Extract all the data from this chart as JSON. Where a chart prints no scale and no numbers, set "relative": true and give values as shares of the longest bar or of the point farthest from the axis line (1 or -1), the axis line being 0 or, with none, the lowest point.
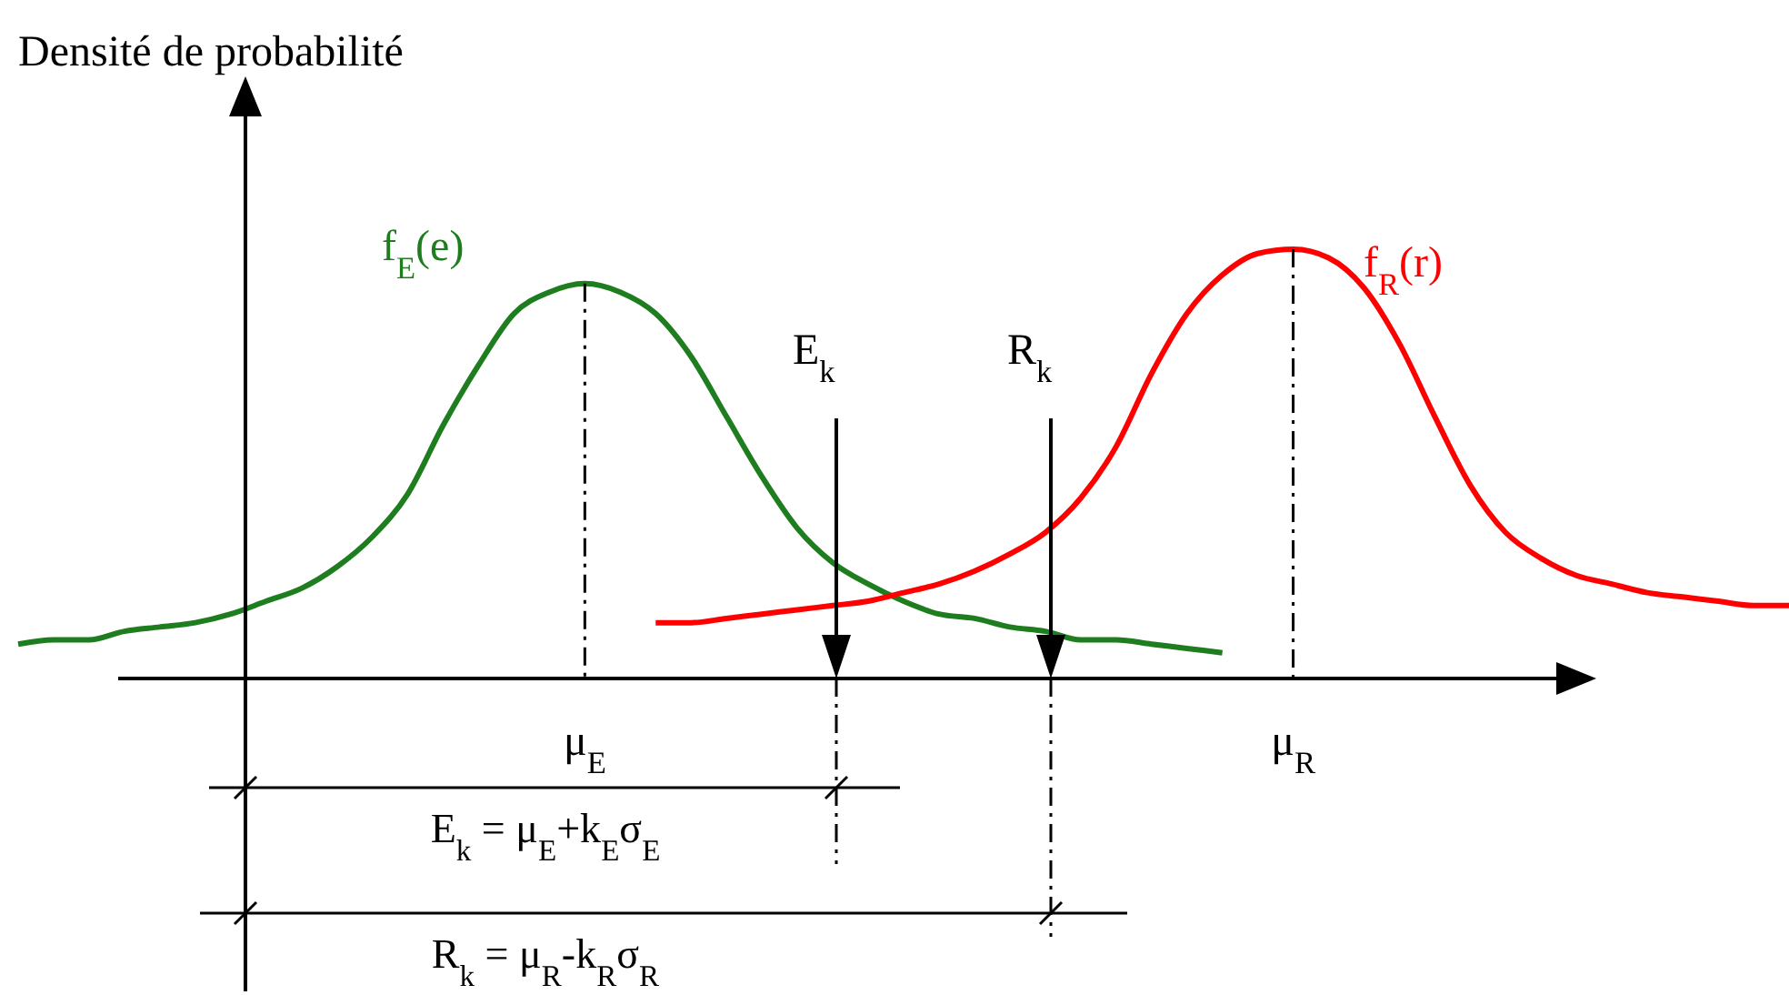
{
  "chart_data": {
    "type": "line",
    "relative": true,
    "ylabel": "Densité de probabilité",
    "categories": [
      null,
      null,
      null,
      null,
      null,
      null,
      null,
      null,
      null,
      null,
      null,
      null,
      null,
      null,
      null,
      null,
      "μ$_{E}$",
      null,
      null,
      null,
      null,
      null,
      null,
      null,
      null,
      null,
      null,
      null,
      null,
      null,
      null,
      null,
      null,
      null,
      null,
      null,
      "μ$_{R}$",
      null,
      null,
      null,
      null,
      null,
      null,
      null,
      null,
      null,
      null,
      null,
      null,
      null,
      null
    ],
    "series": [
      {
        "name": "f$_{E}$(e)",
        "color": "#1e7d1e",
        "values": [
          0.08,
          0.09,
          0.09,
          0.11,
          0.12,
          0.13,
          0.15,
          0.18,
          0.21,
          0.26,
          0.33,
          0.43,
          0.59,
          0.73,
          0.85,
          0.9,
          0.92,
          0.9,
          0.85,
          0.75,
          0.61,
          0.47,
          0.35,
          0.27,
          0.22,
          0.18,
          0.15,
          0.14,
          0.12,
          0.11,
          0.09,
          0.09,
          0.08,
          0.07,
          0.06,
          null,
          null,
          null,
          null,
          null,
          null,
          null,
          null,
          null,
          null,
          null,
          null,
          null,
          null,
          null,
          null
        ]
      },
      {
        "name": "f$_{R}$(r)",
        "color": "#ff0000",
        "values": [
          null,
          null,
          null,
          null,
          null,
          null,
          null,
          null,
          null,
          null,
          null,
          null,
          null,
          null,
          null,
          null,
          null,
          null,
          0.13,
          0.13,
          0.14,
          0.15,
          0.16,
          0.17,
          0.18,
          0.2,
          0.22,
          0.25,
          0.29,
          0.34,
          0.42,
          0.54,
          0.71,
          0.85,
          0.94,
          0.99,
          1,
          0.98,
          0.91,
          0.78,
          0.61,
          0.45,
          0.34,
          0.28,
          0.24,
          0.22,
          0.2,
          0.19,
          0.18,
          0.17,
          0.17
        ]
      }
    ],
    "annotations": [
      "E$_{k}$",
      "R$_{k}$",
      "E$_{k}$ = μ$_{E}$+k$_{E}$σ$_{E}$",
      "R$_{k}$ = μ$_{R}$-k$_{R}$σ$_{R}$"
    ]
  }
}
